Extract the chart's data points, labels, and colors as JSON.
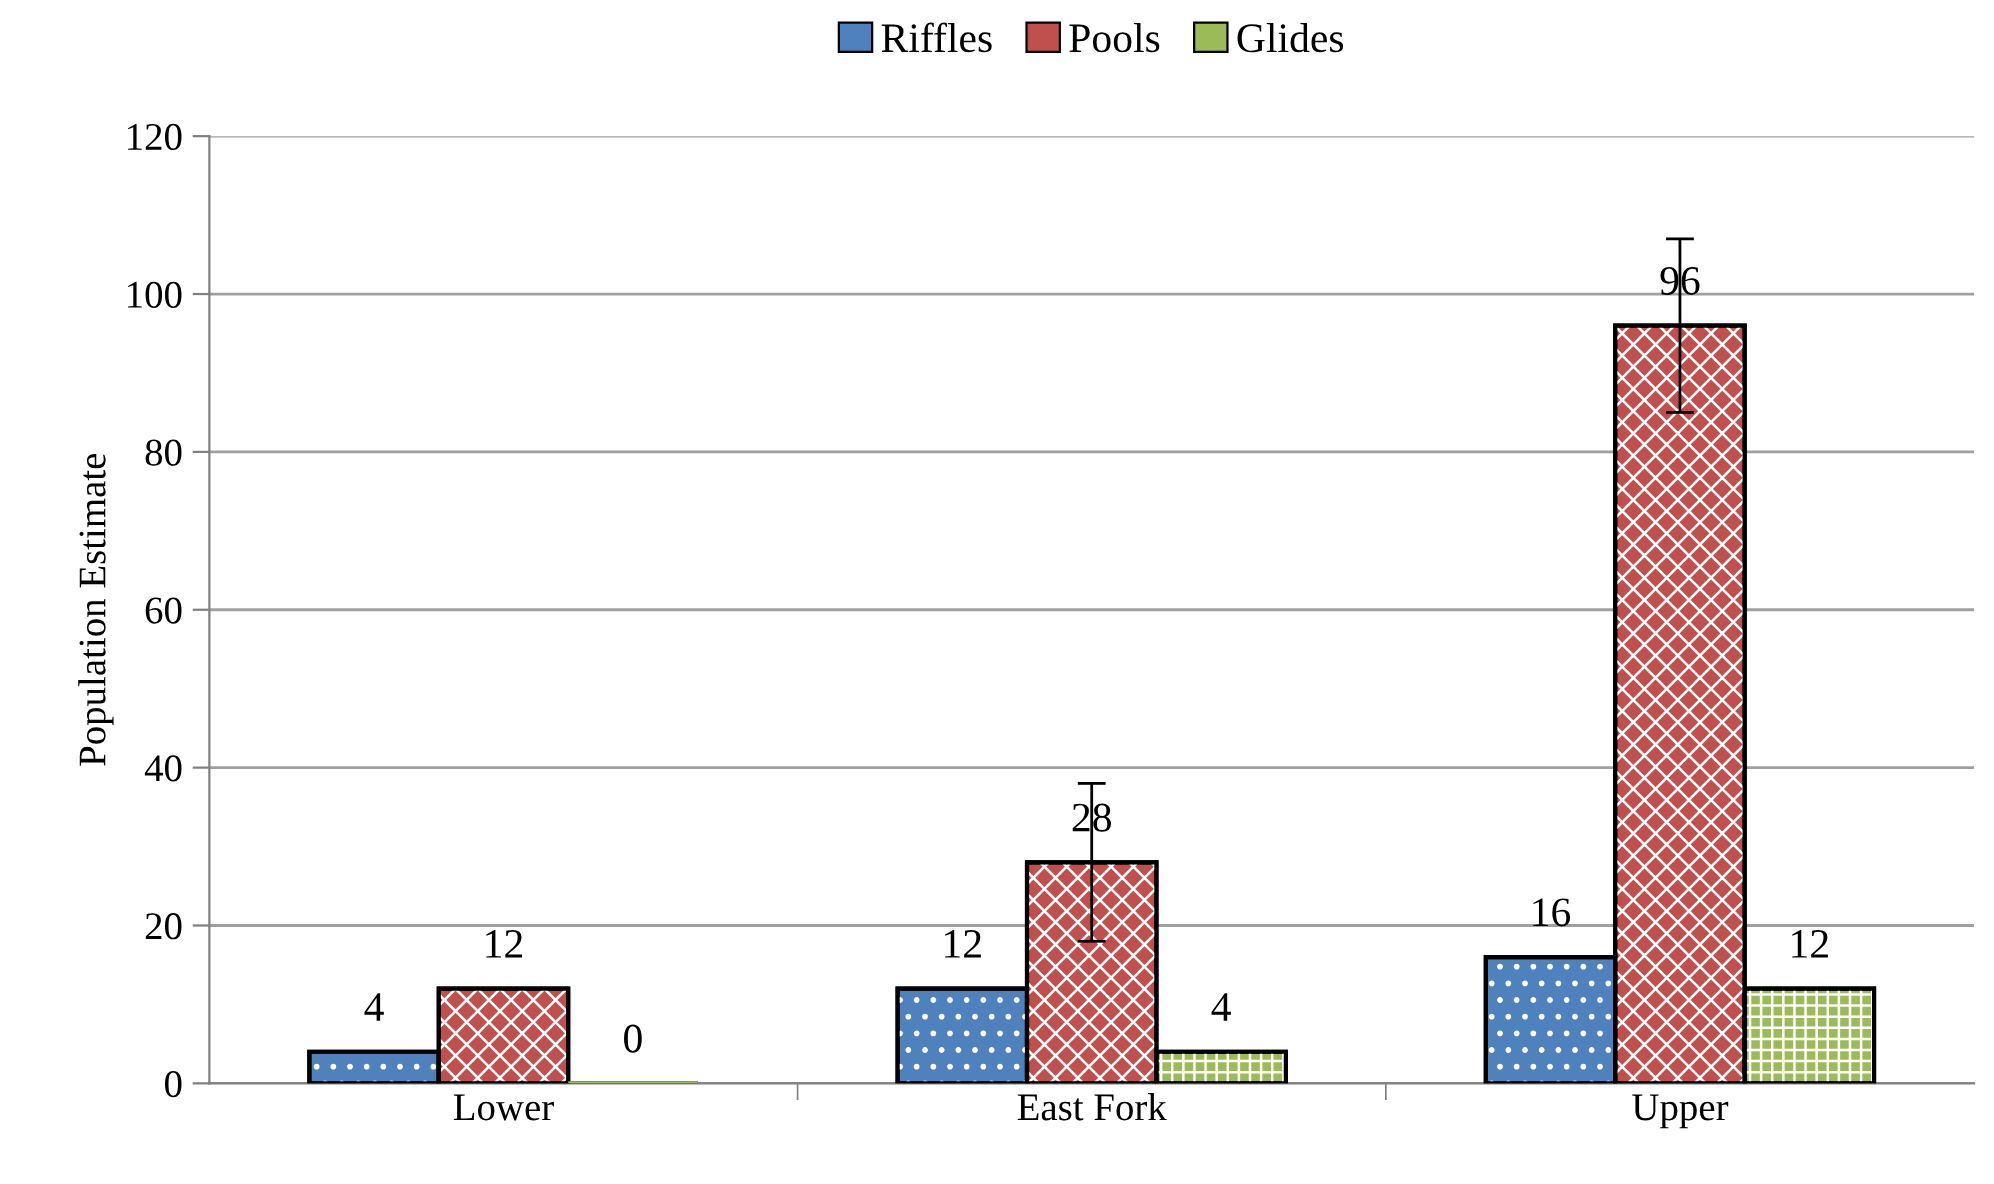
{
  "chart_data": {
    "type": "bar",
    "ylabel": "Population Estimate",
    "categories": [
      "Lower",
      "East Fork",
      "Upper"
    ],
    "series": [
      {
        "name": "Riffles",
        "color": "#4f81bd",
        "values": [
          4,
          12,
          16
        ]
      },
      {
        "name": "Pools",
        "color": "#c0504d",
        "values": [
          12,
          28,
          96
        ],
        "errors": [
          null,
          10,
          11
        ]
      },
      {
        "name": "Glides",
        "color": "#9bbb59",
        "values": [
          0,
          4,
          12
        ]
      }
    ],
    "ylim": [
      0,
      120
    ],
    "yticks": [
      0,
      20,
      40,
      60,
      80,
      100,
      120
    ],
    "grid": "y",
    "legend": "top",
    "data_labels": true
  }
}
